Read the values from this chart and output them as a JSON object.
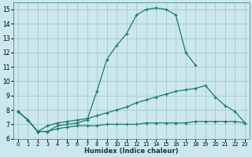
{
  "title": "",
  "xlabel": "Humidex (Indice chaleur)",
  "ylabel": "",
  "background_color": "#cce8ec",
  "grid_color": "#aacdd4",
  "line_color": "#1a7a6e",
  "xlim": [
    -0.5,
    23.5
  ],
  "ylim": [
    6,
    15.5
  ],
  "xticks": [
    0,
    1,
    2,
    3,
    4,
    5,
    6,
    7,
    8,
    9,
    10,
    11,
    12,
    13,
    14,
    15,
    16,
    17,
    18,
    19,
    20,
    21,
    22,
    23
  ],
  "yticks": [
    6,
    7,
    8,
    9,
    10,
    11,
    12,
    13,
    14,
    15
  ],
  "series": [
    {
      "x": [
        0,
        1,
        2,
        3,
        4,
        5,
        6,
        7,
        8,
        9,
        10,
        11,
        12,
        13,
        14,
        15,
        16,
        17,
        18,
        19,
        20,
        21,
        22,
        23
      ],
      "y": [
        7.9,
        7.3,
        6.5,
        6.5,
        6.9,
        7.0,
        7.1,
        7.3,
        9.3,
        11.5,
        12.5,
        13.3,
        14.6,
        15.0,
        15.1,
        15.0,
        14.6,
        12.0,
        11.1,
        null,
        null,
        null,
        null,
        null
      ]
    },
    {
      "x": [
        0,
        1,
        2,
        3,
        4,
        5,
        6,
        7,
        8,
        9,
        10,
        11,
        12,
        13,
        14,
        15,
        16,
        17,
        18,
        19,
        20,
        21,
        22,
        23
      ],
      "y": [
        7.9,
        7.3,
        6.5,
        6.9,
        7.1,
        7.2,
        7.3,
        7.4,
        7.6,
        7.8,
        8.0,
        8.2,
        8.5,
        8.7,
        8.9,
        9.1,
        9.3,
        9.4,
        9.5,
        9.7,
        8.9,
        8.3,
        7.9,
        7.1
      ]
    },
    {
      "x": [
        0,
        1,
        2,
        3,
        4,
        5,
        6,
        7,
        8,
        9,
        10,
        11,
        12,
        13,
        14,
        15,
        16,
        17,
        18,
        19,
        20,
        21,
        22,
        23
      ],
      "y": [
        7.9,
        7.3,
        6.5,
        6.5,
        6.7,
        6.8,
        6.9,
        6.9,
        6.9,
        7.0,
        7.0,
        7.0,
        7.0,
        7.1,
        7.1,
        7.1,
        7.1,
        7.1,
        7.2,
        7.2,
        7.2,
        7.2,
        7.2,
        7.1
      ]
    }
  ]
}
